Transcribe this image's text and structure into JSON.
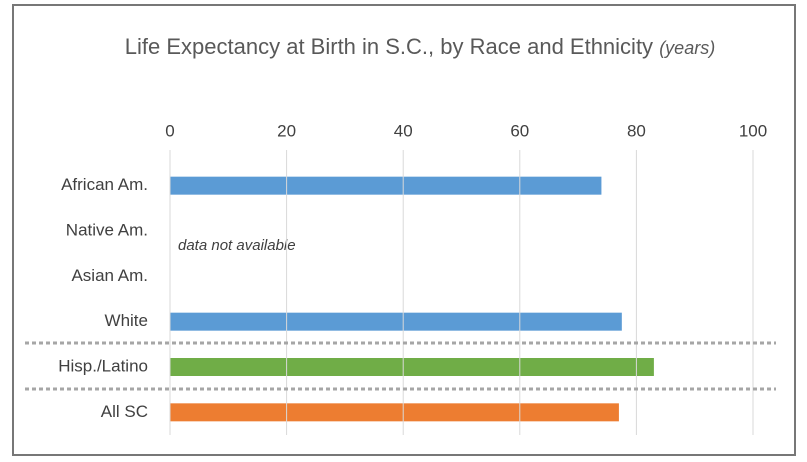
{
  "chart_data": {
    "type": "bar",
    "orientation": "horizontal",
    "title": "Life Expectancy at Birth in S.C., by Race and Ethnicity",
    "subtitle": "(years)",
    "categories": [
      "African Am.",
      "Native Am.",
      "Asian Am.",
      "White",
      "Hisp./Latino",
      "All SC"
    ],
    "values": [
      74,
      null,
      null,
      77.5,
      83,
      77
    ],
    "colors": [
      "#5b9bd5",
      null,
      null,
      "#5b9bd5",
      "#70ad47",
      "#ed7d31"
    ],
    "xlim": [
      0,
      100
    ],
    "xticks": [
      0,
      20,
      40,
      60,
      80,
      100
    ],
    "grid": true,
    "annotation": "data not available"
  }
}
